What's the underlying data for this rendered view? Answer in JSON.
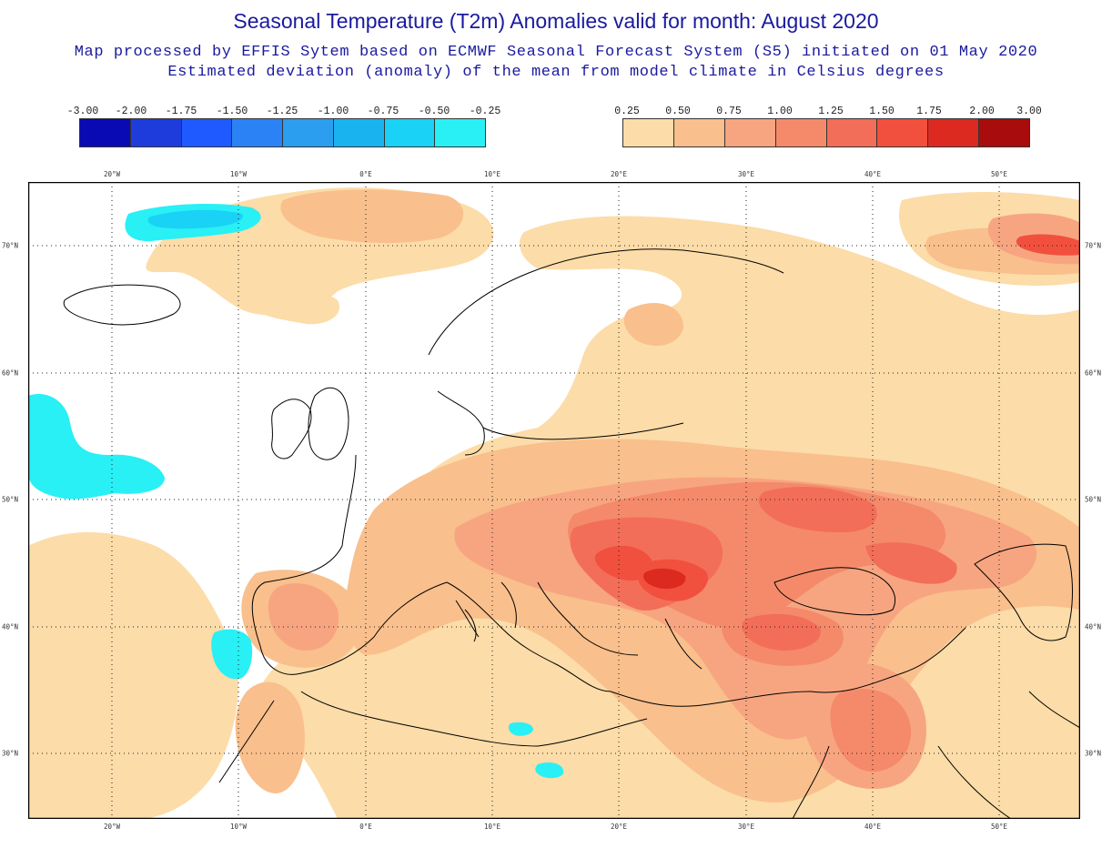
{
  "header": {
    "title": "Seasonal Temperature (T2m) Anomalies valid for month: August 2020",
    "subtitle1": "Map processed by EFFIS Sytem based on ECMWF Seasonal Forecast System (S5) initiated on 01 May 2020",
    "subtitle2": "Estimated deviation (anomaly) of the mean from model climate in Celsius degrees"
  },
  "legend": {
    "cold": {
      "ticks": [
        "-3.00",
        "-2.00",
        "-1.75",
        "-1.50",
        "-1.25",
        "-1.00",
        "-0.75",
        "-0.50",
        "-0.25"
      ],
      "colors": [
        "#0a0ab4",
        "#1e3cdc",
        "#1e5aff",
        "#2b82f5",
        "#2b9ef0",
        "#19b4f0",
        "#19d2f5",
        "#28f0f5"
      ]
    },
    "warm": {
      "ticks": [
        "0.25",
        "0.50",
        "0.75",
        "1.00",
        "1.25",
        "1.50",
        "1.75",
        "2.00",
        "3.00"
      ],
      "colors": [
        "#fcdca8",
        "#f9bf8c",
        "#f7a580",
        "#f48a6a",
        "#f36e58",
        "#f2503e",
        "#dc2a20",
        "#a80c0c"
      ]
    }
  },
  "axes": {
    "lon_labels": [
      "20°W",
      "10°W",
      "0°E",
      "10°E",
      "20°E",
      "30°E",
      "40°E",
      "50°E"
    ],
    "lat_labels": [
      "70°N",
      "60°N",
      "50°N",
      "40°N",
      "30°N"
    ]
  }
}
